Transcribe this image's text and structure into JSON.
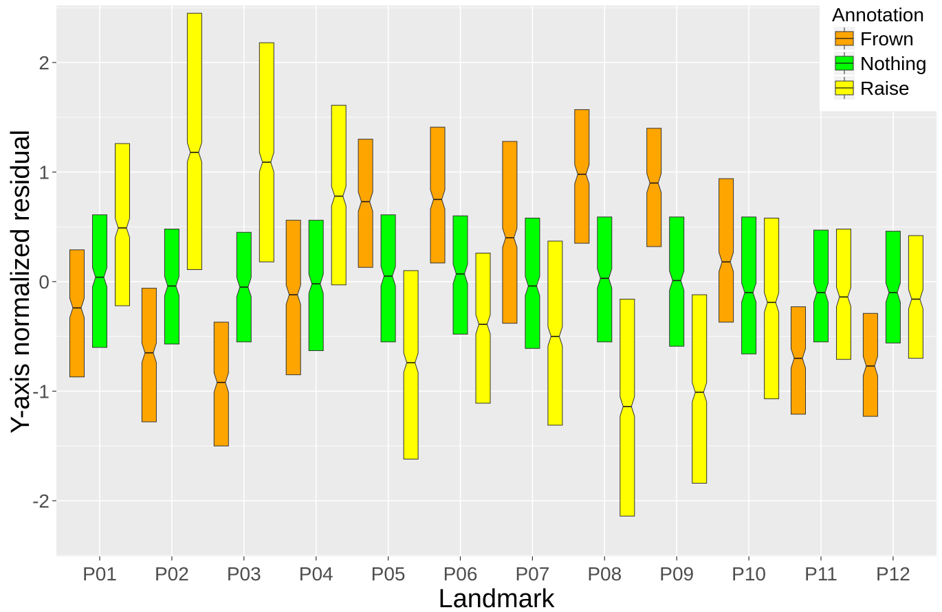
{
  "chart_data": {
    "type": "boxplot",
    "title": "",
    "xlabel": "Landmark",
    "ylabel": "Y-axis normalized residual",
    "categories": [
      "P01",
      "P02",
      "P03",
      "P04",
      "P05",
      "P06",
      "P07",
      "P08",
      "P09",
      "P10",
      "P11",
      "P12"
    ],
    "ylim": [
      -2.5,
      2.5
    ],
    "yticks": [
      -2,
      -1,
      0,
      1,
      2
    ],
    "ytick_labels": [
      "-2",
      "-1",
      "0",
      "1",
      "2"
    ],
    "grid": true,
    "notched": true,
    "legend": {
      "title": "Annotation",
      "position": "top-right",
      "entries": [
        "Frown",
        "Nothing",
        "Raise"
      ]
    },
    "colors": {
      "Frown": "#FFA500",
      "Nothing": "#00FF00",
      "Raise": "#FFFF00"
    },
    "series": [
      {
        "name": "Frown",
        "boxes": [
          {
            "q1": -0.87,
            "median": -0.24,
            "q3": 0.29
          },
          {
            "q1": -1.28,
            "median": -0.65,
            "q3": -0.06
          },
          {
            "q1": -1.5,
            "median": -0.92,
            "q3": -0.37
          },
          {
            "q1": -0.85,
            "median": -0.12,
            "q3": 0.56
          },
          {
            "q1": 0.13,
            "median": 0.73,
            "q3": 1.3
          },
          {
            "q1": 0.17,
            "median": 0.75,
            "q3": 1.41
          },
          {
            "q1": -0.38,
            "median": 0.4,
            "q3": 1.28
          },
          {
            "q1": 0.35,
            "median": 0.98,
            "q3": 1.57
          },
          {
            "q1": 0.32,
            "median": 0.9,
            "q3": 1.4
          },
          {
            "q1": -0.37,
            "median": 0.18,
            "q3": 0.94
          },
          {
            "q1": -1.21,
            "median": -0.7,
            "q3": -0.23
          },
          {
            "q1": -1.23,
            "median": -0.77,
            "q3": -0.29
          }
        ]
      },
      {
        "name": "Nothing",
        "boxes": [
          {
            "q1": -0.6,
            "median": 0.04,
            "q3": 0.61
          },
          {
            "q1": -0.57,
            "median": -0.04,
            "q3": 0.48
          },
          {
            "q1": -0.55,
            "median": -0.05,
            "q3": 0.45
          },
          {
            "q1": -0.63,
            "median": -0.02,
            "q3": 0.56
          },
          {
            "q1": -0.55,
            "median": 0.05,
            "q3": 0.61
          },
          {
            "q1": -0.48,
            "median": 0.07,
            "q3": 0.6
          },
          {
            "q1": -0.61,
            "median": -0.04,
            "q3": 0.58
          },
          {
            "q1": -0.55,
            "median": 0.03,
            "q3": 0.59
          },
          {
            "q1": -0.59,
            "median": 0.01,
            "q3": 0.59
          },
          {
            "q1": -0.66,
            "median": -0.1,
            "q3": 0.59
          },
          {
            "q1": -0.55,
            "median": -0.1,
            "q3": 0.47
          },
          {
            "q1": -0.56,
            "median": -0.1,
            "q3": 0.46
          }
        ]
      },
      {
        "name": "Raise",
        "boxes": [
          {
            "q1": -0.22,
            "median": 0.49,
            "q3": 1.26
          },
          {
            "q1": 0.11,
            "median": 1.18,
            "q3": 2.45
          },
          {
            "q1": 0.18,
            "median": 1.09,
            "q3": 2.18
          },
          {
            "q1": -0.03,
            "median": 0.78,
            "q3": 1.61
          },
          {
            "q1": -1.62,
            "median": -0.74,
            "q3": 0.1
          },
          {
            "q1": -1.11,
            "median": -0.39,
            "q3": 0.26
          },
          {
            "q1": -1.31,
            "median": -0.5,
            "q3": 0.37
          },
          {
            "q1": -2.14,
            "median": -1.14,
            "q3": -0.16
          },
          {
            "q1": -1.84,
            "median": -1.01,
            "q3": -0.12
          },
          {
            "q1": -1.07,
            "median": -0.19,
            "q3": 0.58
          },
          {
            "q1": -0.71,
            "median": -0.14,
            "q3": 0.48
          },
          {
            "q1": -0.7,
            "median": -0.16,
            "q3": 0.42
          }
        ]
      }
    ]
  }
}
